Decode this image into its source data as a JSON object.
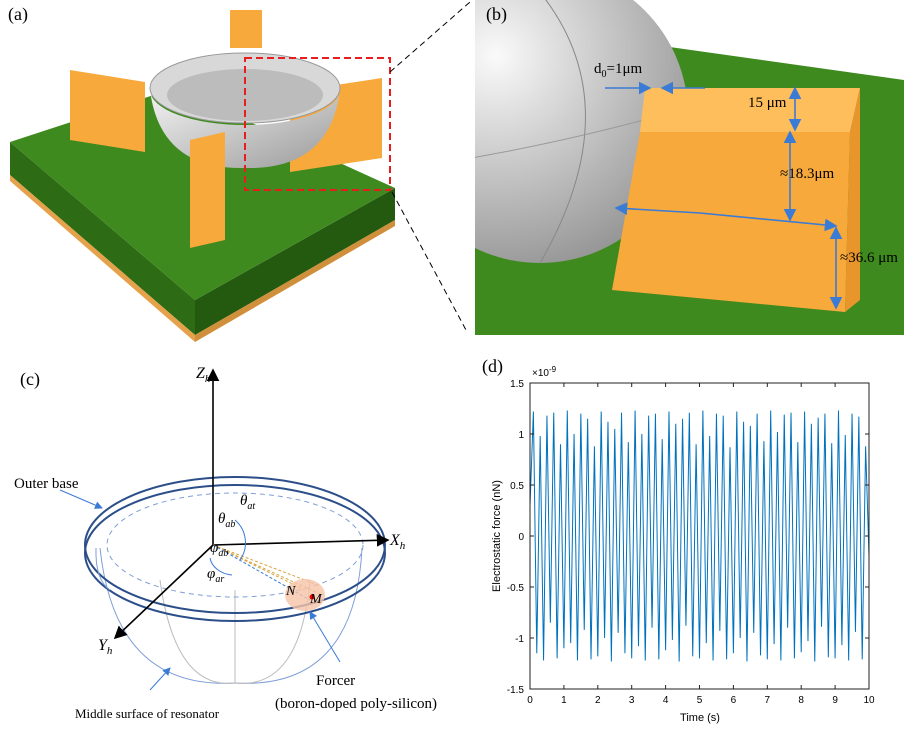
{
  "panel_labels": [
    "(a)",
    "(b)",
    "(c)",
    "(d)"
  ],
  "panel_b": {
    "gap": {
      "main": "d",
      "sub": "0",
      "rest": "=1μm"
    },
    "dims": [
      "15 μm",
      "≈18.3μm",
      "≈36.6 μm"
    ]
  },
  "panel_c": {
    "axes": [
      {
        "main": "Z",
        "sub": "h"
      },
      {
        "main": "X",
        "sub": "h"
      },
      {
        "main": "Y",
        "sub": "h"
      }
    ],
    "angles": [
      {
        "main": "θ",
        "sub": "ab"
      },
      {
        "main": "θ",
        "sub": "at"
      },
      {
        "main": "φ",
        "sub": "ab"
      },
      {
        "main": "φ",
        "sub": "ar"
      }
    ],
    "points": [
      "N",
      "M"
    ],
    "labels": [
      "Outer base",
      "Middle surface of resonator",
      "Forcer",
      "(boron-doped poly-silicon)"
    ]
  },
  "chart_data": {
    "type": "line",
    "xlabel": "Time (s)",
    "ylabel": "Electrostatic force (nN)",
    "multiplier": {
      "base": "×10",
      "exp": "-9"
    },
    "color": "#0072bd",
    "xlim": [
      0,
      10
    ],
    "ylim": [
      -1.5,
      1.5
    ],
    "xticks": [
      0,
      1,
      2,
      3,
      4,
      5,
      6,
      7,
      8,
      9,
      10
    ],
    "yticks": [
      -1.5,
      -1,
      -0.5,
      0,
      0.5,
      1,
      1.5
    ],
    "x": [
      0,
      0.1,
      0.2,
      0.3,
      0.4,
      0.5,
      0.6,
      0.7,
      0.8,
      0.9,
      1,
      1.1,
      1.2,
      1.3,
      1.4,
      1.5,
      1.6,
      1.7,
      1.8,
      1.9,
      2,
      2.1,
      2.2,
      2.3,
      2.4,
      2.5,
      2.6,
      2.7,
      2.8,
      2.9,
      3,
      3.1,
      3.2,
      3.3,
      3.4,
      3.5,
      3.6,
      3.7,
      3.8,
      3.9,
      4,
      4.1,
      4.2,
      4.3,
      4.4,
      4.5,
      4.6,
      4.7,
      4.8,
      4.9,
      5,
      5.1,
      5.2,
      5.3,
      5.4,
      5.5,
      5.6,
      5.7,
      5.8,
      5.9,
      6,
      6.1,
      6.2,
      6.3,
      6.4,
      6.5,
      6.6,
      6.7,
      6.8,
      6.9,
      7,
      7.1,
      7.2,
      7.3,
      7.4,
      7.5,
      7.6,
      7.7,
      7.8,
      7.9,
      8,
      8.1,
      8.2,
      8.3,
      8.4,
      8.5,
      8.6,
      8.7,
      8.8,
      8.9,
      9,
      9.1,
      9.2,
      9.3,
      9.4,
      9.5,
      9.6,
      9.7,
      9.8,
      9.9,
      10
    ],
    "values": [
      0.3,
      1.22,
      -1.15,
      0.98,
      -1.22,
      1.18,
      -0.85,
      1.21,
      -1.2,
      0.9,
      -1.1,
      1.23,
      -1.05,
      1.0,
      -1.22,
      1.2,
      -0.92,
      1.15,
      -1.21,
      0.88,
      -1.18,
      1.22,
      -1.0,
      1.12,
      -1.23,
      1.05,
      -0.95,
      1.21,
      -1.15,
      0.92,
      -1.2,
      1.23,
      -1.08,
      1.0,
      -1.22,
      1.18,
      -0.9,
      1.2,
      -1.21,
      0.95,
      -1.12,
      1.22,
      -1.02,
      1.1,
      -1.23,
      1.15,
      -0.88,
      1.21,
      -1.18,
      0.9,
      -1.2,
      1.23,
      -1.05,
      0.98,
      -1.22,
      1.2,
      -0.93,
      1.18,
      -1.21,
      0.87,
      -1.15,
      1.22,
      -1.0,
      1.12,
      -1.23,
      1.08,
      -0.95,
      1.2,
      -1.17,
      0.93,
      -1.21,
      1.23,
      -1.06,
      1.02,
      -1.22,
      1.19,
      -0.9,
      1.21,
      -1.2,
      0.92,
      -1.14,
      1.22,
      -1.03,
      1.1,
      -1.23,
      1.16,
      -0.89,
      1.2,
      -1.19,
      0.91,
      -1.2,
      1.23,
      -1.07,
      0.99,
      -1.22,
      1.2,
      -0.94,
      1.17,
      -1.21,
      0.88,
      -0.2
    ]
  }
}
